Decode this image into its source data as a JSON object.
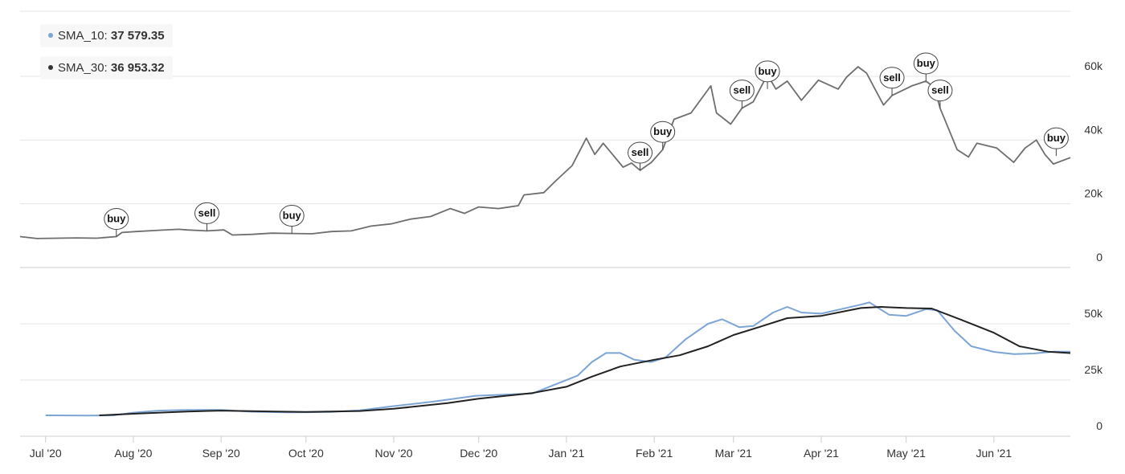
{
  "legend": [
    {
      "name": "SMA_10",
      "value": "37 579.35",
      "color": "#7ca5d6"
    },
    {
      "name": "SMA_30",
      "value": "36 953.32",
      "color": "#333333"
    }
  ],
  "chart_data": [
    {
      "type": "line",
      "title": "",
      "x_range": [
        "2020-06-22",
        "2021-06-28"
      ],
      "x_ticks": [
        {
          "date": "2020-07-01",
          "label": "Jul '20"
        },
        {
          "date": "2020-08-01",
          "label": "Aug '20"
        },
        {
          "date": "2020-09-01",
          "label": "Sep '20"
        },
        {
          "date": "2020-10-01",
          "label": "Oct '20"
        },
        {
          "date": "2020-11-01",
          "label": "Nov '20"
        },
        {
          "date": "2020-12-01",
          "label": "Dec '20"
        },
        {
          "date": "2021-01-01",
          "label": "Jan '21"
        },
        {
          "date": "2021-02-01",
          "label": "Feb '21"
        },
        {
          "date": "2021-03-01",
          "label": "Mar '21"
        },
        {
          "date": "2021-04-01",
          "label": "Apr '21"
        },
        {
          "date": "2021-05-01",
          "label": "May '21"
        },
        {
          "date": "2021-06-01",
          "label": "Jun '21"
        }
      ],
      "y_ticks": [
        {
          "value": 0,
          "label": "0"
        },
        {
          "value": 20000,
          "label": "20k"
        },
        {
          "value": 40000,
          "label": "40k"
        },
        {
          "value": 60000,
          "label": "60k"
        }
      ],
      "ylim": [
        0,
        62000
      ],
      "grid": true,
      "series": [
        {
          "color": "#6e6e6e",
          "points": [
            [
              "2020-06-22",
              9700
            ],
            [
              "2020-06-28",
              9100
            ],
            [
              "2020-07-05",
              9200
            ],
            [
              "2020-07-12",
              9300
            ],
            [
              "2020-07-19",
              9200
            ],
            [
              "2020-07-26",
              9700
            ],
            [
              "2020-07-28",
              11000
            ],
            [
              "2020-08-02",
              11300
            ],
            [
              "2020-08-10",
              11700
            ],
            [
              "2020-08-17",
              12000
            ],
            [
              "2020-08-20",
              11800
            ],
            [
              "2020-08-27",
              11500
            ],
            [
              "2020-09-02",
              11800
            ],
            [
              "2020-09-05",
              10200
            ],
            [
              "2020-09-12",
              10400
            ],
            [
              "2020-09-19",
              10800
            ],
            [
              "2020-09-26",
              10700
            ],
            [
              "2020-10-03",
              10600
            ],
            [
              "2020-10-10",
              11300
            ],
            [
              "2020-10-17",
              11500
            ],
            [
              "2020-10-24",
              13000
            ],
            [
              "2020-10-31",
              13700
            ],
            [
              "2020-11-07",
              15200
            ],
            [
              "2020-11-14",
              16000
            ],
            [
              "2020-11-21",
              18500
            ],
            [
              "2020-11-26",
              17000
            ],
            [
              "2020-12-01",
              19000
            ],
            [
              "2020-12-08",
              18500
            ],
            [
              "2020-12-15",
              19400
            ],
            [
              "2020-12-17",
              22800
            ],
            [
              "2020-12-24",
              23500
            ],
            [
              "2020-12-28",
              27000
            ],
            [
              "2021-01-03",
              32000
            ],
            [
              "2021-01-08",
              40600
            ],
            [
              "2021-01-11",
              35500
            ],
            [
              "2021-01-14",
              39000
            ],
            [
              "2021-01-21",
              31500
            ],
            [
              "2021-01-24",
              32800
            ],
            [
              "2021-01-27",
              30500
            ],
            [
              "2021-01-31",
              33000
            ],
            [
              "2021-02-04",
              37000
            ],
            [
              "2021-02-08",
              46500
            ],
            [
              "2021-02-14",
              48500
            ],
            [
              "2021-02-21",
              57000
            ],
            [
              "2021-02-23",
              48500
            ],
            [
              "2021-02-28",
              45000
            ],
            [
              "2021-03-04",
              50000
            ],
            [
              "2021-03-08",
              52000
            ],
            [
              "2021-03-13",
              60500
            ],
            [
              "2021-03-16",
              56000
            ],
            [
              "2021-03-20",
              58500
            ],
            [
              "2021-03-25",
              52500
            ],
            [
              "2021-03-31",
              58800
            ],
            [
              "2021-04-07",
              56000
            ],
            [
              "2021-04-10",
              59800
            ],
            [
              "2021-04-14",
              63000
            ],
            [
              "2021-04-17",
              61000
            ],
            [
              "2021-04-20",
              56000
            ],
            [
              "2021-04-23",
              51000
            ],
            [
              "2021-04-26",
              54000
            ],
            [
              "2021-05-03",
              57000
            ],
            [
              "2021-05-08",
              58500
            ],
            [
              "2021-05-11",
              56500
            ],
            [
              "2021-05-13",
              50000
            ],
            [
              "2021-05-19",
              37000
            ],
            [
              "2021-05-23",
              34700
            ],
            [
              "2021-05-26",
              39000
            ],
            [
              "2021-06-02",
              37500
            ],
            [
              "2021-06-08",
              33000
            ],
            [
              "2021-06-12",
              37500
            ],
            [
              "2021-06-16",
              40000
            ],
            [
              "2021-06-19",
              35500
            ],
            [
              "2021-06-22",
              32500
            ],
            [
              "2021-06-28",
              34500
            ]
          ]
        }
      ],
      "annotations": [
        {
          "label": "buy",
          "date": "2020-07-26",
          "value": 9700
        },
        {
          "label": "sell",
          "date": "2020-08-27",
          "value": 11500
        },
        {
          "label": "buy",
          "date": "2020-09-26",
          "value": 10700
        },
        {
          "label": "sell",
          "date": "2021-01-27",
          "value": 30500
        },
        {
          "label": "buy",
          "date": "2021-02-04",
          "value": 37000
        },
        {
          "label": "sell",
          "date": "2021-03-04",
          "value": 50000
        },
        {
          "label": "buy",
          "date": "2021-03-13",
          "value": 56000
        },
        {
          "label": "sell",
          "date": "2021-04-26",
          "value": 54000
        },
        {
          "label": "buy",
          "date": "2021-05-08",
          "value": 58500
        },
        {
          "label": "sell",
          "date": "2021-05-13",
          "value": 50000
        },
        {
          "label": "buy",
          "date": "2021-06-23",
          "value": 35000
        }
      ]
    },
    {
      "type": "line",
      "title": "",
      "x_range": [
        "2020-06-22",
        "2021-06-28"
      ],
      "y_ticks": [
        {
          "value": 0,
          "label": "0"
        },
        {
          "value": 25000,
          "label": "25k"
        },
        {
          "value": 50000,
          "label": "50k"
        }
      ],
      "ylim": [
        0,
        60000
      ],
      "grid": true,
      "series": [
        {
          "name": "SMA_10",
          "color": "#7ca5d6",
          "points": [
            [
              "2020-07-01",
              9300
            ],
            [
              "2020-07-15",
              9200
            ],
            [
              "2020-07-25",
              9300
            ],
            [
              "2020-08-01",
              10500
            ],
            [
              "2020-08-10",
              11400
            ],
            [
              "2020-08-20",
              11700
            ],
            [
              "2020-09-01",
              11700
            ],
            [
              "2020-09-12",
              10900
            ],
            [
              "2020-09-25",
              10600
            ],
            [
              "2020-10-10",
              10800
            ],
            [
              "2020-10-20",
              11500
            ],
            [
              "2020-11-01",
              13400
            ],
            [
              "2020-11-15",
              15400
            ],
            [
              "2020-11-30",
              18000
            ],
            [
              "2020-12-10",
              18500
            ],
            [
              "2020-12-20",
              19000
            ],
            [
              "2020-12-31",
              24500
            ],
            [
              "2021-01-05",
              27000
            ],
            [
              "2021-01-10",
              33000
            ],
            [
              "2021-01-15",
              37000
            ],
            [
              "2021-01-20",
              37000
            ],
            [
              "2021-01-25",
              34000
            ],
            [
              "2021-01-31",
              33000
            ],
            [
              "2021-02-05",
              35000
            ],
            [
              "2021-02-12",
              43000
            ],
            [
              "2021-02-20",
              50000
            ],
            [
              "2021-02-25",
              52000
            ],
            [
              "2021-03-03",
              48500
            ],
            [
              "2021-03-08",
              49000
            ],
            [
              "2021-03-15",
              55000
            ],
            [
              "2021-03-20",
              57500
            ],
            [
              "2021-03-25",
              55000
            ],
            [
              "2021-04-01",
              54500
            ],
            [
              "2021-04-08",
              56500
            ],
            [
              "2021-04-15",
              58500
            ],
            [
              "2021-04-18",
              59500
            ],
            [
              "2021-04-25",
              54000
            ],
            [
              "2021-05-01",
              53500
            ],
            [
              "2021-05-08",
              56500
            ],
            [
              "2021-05-12",
              56000
            ],
            [
              "2021-05-18",
              47000
            ],
            [
              "2021-05-24",
              40000
            ],
            [
              "2021-06-01",
              37500
            ],
            [
              "2021-06-08",
              36500
            ],
            [
              "2021-06-15",
              36800
            ],
            [
              "2021-06-22",
              37600
            ],
            [
              "2021-06-28",
              37580
            ]
          ]
        },
        {
          "name": "SMA_30",
          "color": "#222222",
          "points": [
            [
              "2020-07-20",
              9300
            ],
            [
              "2020-08-01",
              10000
            ],
            [
              "2020-08-20",
              11000
            ],
            [
              "2020-09-01",
              11400
            ],
            [
              "2020-09-20",
              11000
            ],
            [
              "2020-10-01",
              10800
            ],
            [
              "2020-10-20",
              11200
            ],
            [
              "2020-11-01",
              12200
            ],
            [
              "2020-11-20",
              14700
            ],
            [
              "2020-12-01",
              16700
            ],
            [
              "2020-12-20",
              19200
            ],
            [
              "2021-01-01",
              22000
            ],
            [
              "2021-01-10",
              26500
            ],
            [
              "2021-01-20",
              31000
            ],
            [
              "2021-02-01",
              34000
            ],
            [
              "2021-02-10",
              36000
            ],
            [
              "2021-02-20",
              40000
            ],
            [
              "2021-03-01",
              45000
            ],
            [
              "2021-03-10",
              48500
            ],
            [
              "2021-03-20",
              52500
            ],
            [
              "2021-04-01",
              53500
            ],
            [
              "2021-04-15",
              57000
            ],
            [
              "2021-04-22",
              57500
            ],
            [
              "2021-05-01",
              57000
            ],
            [
              "2021-05-10",
              56800
            ],
            [
              "2021-05-20",
              52000
            ],
            [
              "2021-06-01",
              46000
            ],
            [
              "2021-06-10",
              40000
            ],
            [
              "2021-06-20",
              37600
            ],
            [
              "2021-06-28",
              36950
            ]
          ]
        }
      ]
    }
  ]
}
